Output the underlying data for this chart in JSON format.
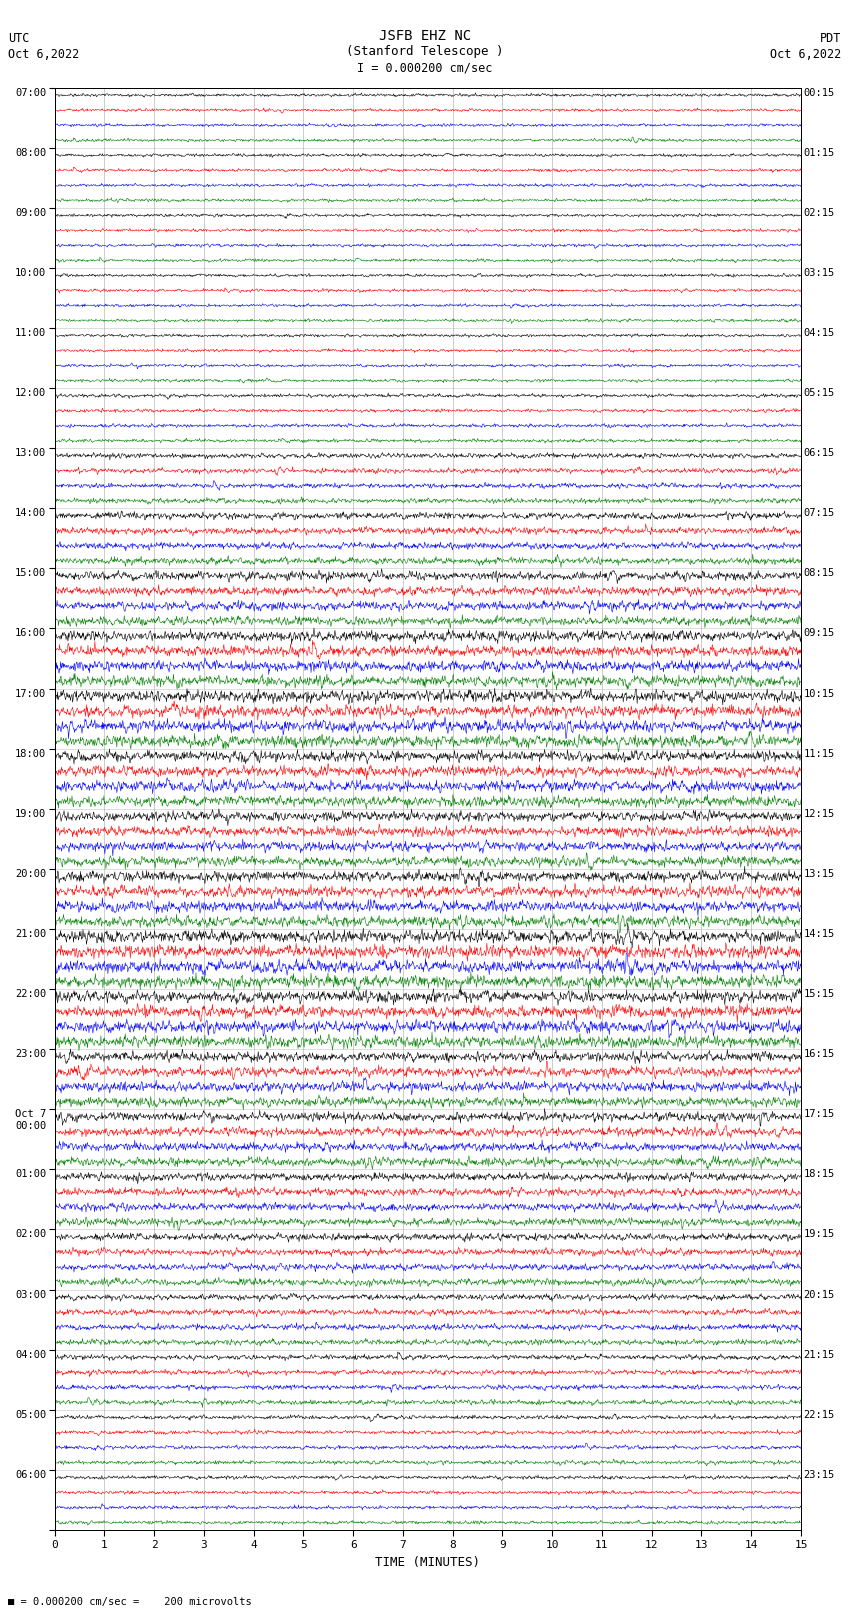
{
  "title_line1": "JSFB EHZ NC",
  "title_line2": "(Stanford Telescope )",
  "title_line3": "I = 0.000200 cm/sec",
  "label_left_top1": "UTC",
  "label_left_top2": "Oct 6,2022",
  "label_right_top1": "PDT",
  "label_right_top2": "Oct 6,2022",
  "xlabel": "TIME (MINUTES)",
  "bottom_note": "= 0.000200 cm/sec =    200 microvolts",
  "utc_hour_labels": [
    "07:00",
    "08:00",
    "09:00",
    "10:00",
    "11:00",
    "12:00",
    "13:00",
    "14:00",
    "15:00",
    "16:00",
    "17:00",
    "18:00",
    "19:00",
    "20:00",
    "21:00",
    "22:00",
    "23:00",
    "Oct 7\n00:00",
    "01:00",
    "02:00",
    "03:00",
    "04:00",
    "05:00",
    "06:00"
  ],
  "pdt_hour_labels": [
    "00:15",
    "01:15",
    "02:15",
    "03:15",
    "04:15",
    "05:15",
    "06:15",
    "07:15",
    "08:15",
    "09:15",
    "10:15",
    "11:15",
    "12:15",
    "13:15",
    "14:15",
    "15:15",
    "16:15",
    "17:15",
    "18:15",
    "19:15",
    "20:15",
    "21:15",
    "22:15",
    "23:15"
  ],
  "n_hours": 24,
  "traces_per_hour": 4,
  "colors": [
    "black",
    "red",
    "blue",
    "green"
  ],
  "time_minutes": 15,
  "bg_color": "white",
  "grid_color": "#999999",
  "font_family": "monospace",
  "amplitude_by_hour": [
    0.06,
    0.06,
    0.06,
    0.06,
    0.06,
    0.07,
    0.1,
    0.14,
    0.18,
    0.22,
    0.24,
    0.22,
    0.2,
    0.22,
    0.26,
    0.24,
    0.2,
    0.18,
    0.16,
    0.14,
    0.12,
    0.1,
    0.08,
    0.07
  ]
}
